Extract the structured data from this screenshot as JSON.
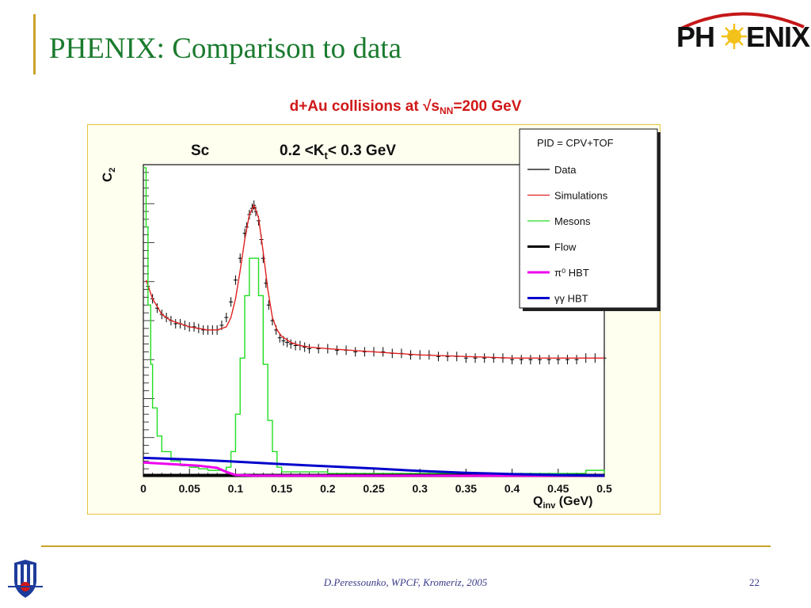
{
  "slide": {
    "title": "PHENIX: Comparison to data",
    "logo_text_left": "PH",
    "logo_text_right": "ENIX",
    "subtitle_prefix": "d+Au collisions at √s",
    "subtitle_sub": "NN",
    "subtitle_suffix": "=200 GeV",
    "footer": "D.Peressounko, WPCF, Kromeriz, 2005",
    "page_number": "22"
  },
  "colors": {
    "title": "#1a7a2e",
    "accent_rule": "#c9a227",
    "subtitle": "#d01818",
    "plot_background": "#fffff0",
    "data": "#000000",
    "simulations": "#e02020",
    "mesons": "#22dd22",
    "flow": "#000000",
    "pi0_hbt": "#ee00ee",
    "gg_hbt": "#0000cc"
  },
  "chart_data": {
    "type": "line",
    "panel_label": "Sc",
    "kt_label_prefix": "0.2 <K",
    "kt_label_sub": "t",
    "kt_label_suffix": "< 0.3 GeV",
    "ylabel": "C",
    "ylabel_sub": "2",
    "xlabel": "Q",
    "xlabel_sub": "inv",
    "xlabel_unit": " (GeV)",
    "xlim": [
      0,
      0.5
    ],
    "ylim": [
      0,
      1
    ],
    "y_tick_labels_shown": false,
    "x_ticks": [
      "0",
      "0.05",
      "0.1",
      "0.15",
      "0.2",
      "0.25",
      "0.3",
      "0.35",
      "0.4",
      "0.45",
      "0.5"
    ],
    "legend": {
      "header": "PID = CPV+TOF",
      "placement": "top-right",
      "entries": [
        {
          "label": "Data",
          "color": "#000000",
          "style": "thin"
        },
        {
          "label": "Simulations",
          "color": "#e02020",
          "style": "thin"
        },
        {
          "label": "Mesons",
          "color": "#22dd22",
          "style": "thin"
        },
        {
          "label": "Flow",
          "color": "#000000",
          "style": "thick"
        },
        {
          "label": "π⁰ HBT",
          "color": "#ee00ee",
          "style": "thick"
        },
        {
          "label": "γγ HBT",
          "color": "#0000cc",
          "style": "thick"
        }
      ]
    },
    "series": [
      {
        "name": "Data",
        "style": "errorbar-points",
        "x": [
          0.005,
          0.01,
          0.015,
          0.02,
          0.025,
          0.03,
          0.035,
          0.04,
          0.045,
          0.05,
          0.055,
          0.06,
          0.065,
          0.07,
          0.075,
          0.08,
          0.085,
          0.09,
          0.095,
          0.1,
          0.105,
          0.11,
          0.112,
          0.115,
          0.118,
          0.12,
          0.122,
          0.125,
          0.128,
          0.13,
          0.133,
          0.136,
          0.14,
          0.144,
          0.148,
          0.152,
          0.156,
          0.16,
          0.165,
          0.17,
          0.175,
          0.18,
          0.19,
          0.2,
          0.21,
          0.22,
          0.23,
          0.24,
          0.25,
          0.26,
          0.27,
          0.28,
          0.29,
          0.3,
          0.31,
          0.32,
          0.33,
          0.34,
          0.35,
          0.36,
          0.37,
          0.38,
          0.39,
          0.4,
          0.41,
          0.42,
          0.43,
          0.44,
          0.45,
          0.46,
          0.47,
          0.48,
          0.49,
          0.5
        ],
        "y": [
          0.61,
          0.57,
          0.54,
          0.52,
          0.51,
          0.5,
          0.49,
          0.49,
          0.485,
          0.48,
          0.48,
          0.475,
          0.47,
          0.47,
          0.47,
          0.47,
          0.485,
          0.51,
          0.56,
          0.63,
          0.7,
          0.78,
          0.8,
          0.84,
          0.86,
          0.87,
          0.85,
          0.82,
          0.76,
          0.7,
          0.62,
          0.55,
          0.5,
          0.47,
          0.445,
          0.435,
          0.43,
          0.425,
          0.42,
          0.42,
          0.415,
          0.41,
          0.41,
          0.41,
          0.405,
          0.405,
          0.4,
          0.4,
          0.4,
          0.4,
          0.395,
          0.395,
          0.39,
          0.39,
          0.39,
          0.385,
          0.385,
          0.385,
          0.38,
          0.38,
          0.38,
          0.38,
          0.38,
          0.375,
          0.375,
          0.375,
          0.375,
          0.375,
          0.375,
          0.375,
          0.375,
          0.38,
          0.38,
          0.38
        ]
      },
      {
        "name": "Simulations",
        "style": "line",
        "x": [
          0.003,
          0.01,
          0.02,
          0.03,
          0.04,
          0.05,
          0.06,
          0.07,
          0.08,
          0.09,
          0.095,
          0.1,
          0.105,
          0.11,
          0.115,
          0.12,
          0.125,
          0.13,
          0.135,
          0.14,
          0.145,
          0.15,
          0.16,
          0.17,
          0.18,
          0.2,
          0.25,
          0.3,
          0.35,
          0.4,
          0.45,
          0.5
        ],
        "y": [
          0.63,
          0.57,
          0.52,
          0.5,
          0.49,
          0.48,
          0.475,
          0.47,
          0.47,
          0.48,
          0.51,
          0.57,
          0.66,
          0.76,
          0.84,
          0.87,
          0.83,
          0.72,
          0.6,
          0.51,
          0.47,
          0.45,
          0.43,
          0.42,
          0.415,
          0.41,
          0.4,
          0.39,
          0.385,
          0.38,
          0.38,
          0.38
        ]
      },
      {
        "name": "Mesons",
        "style": "step",
        "x": [
          0.0,
          0.003,
          0.005,
          0.008,
          0.01,
          0.015,
          0.02,
          0.03,
          0.04,
          0.05,
          0.06,
          0.07,
          0.08,
          0.09,
          0.095,
          0.1,
          0.105,
          0.11,
          0.115,
          0.12,
          0.125,
          0.13,
          0.135,
          0.14,
          0.145,
          0.15,
          0.2,
          0.3,
          0.4,
          0.45,
          0.48,
          0.5
        ],
        "y": [
          0.99,
          0.8,
          0.55,
          0.36,
          0.22,
          0.13,
          0.08,
          0.05,
          0.035,
          0.03,
          0.025,
          0.02,
          0.02,
          0.03,
          0.08,
          0.2,
          0.38,
          0.58,
          0.7,
          0.7,
          0.58,
          0.36,
          0.18,
          0.08,
          0.03,
          0.015,
          0.01,
          0.01,
          0.01,
          0.01,
          0.02,
          0.01
        ]
      },
      {
        "name": "Flow",
        "style": "thick-line",
        "x": [
          0.0,
          0.05,
          0.1,
          0.15,
          0.2,
          0.25,
          0.3,
          0.35,
          0.4,
          0.45,
          0.5
        ],
        "y": [
          0.005,
          0.005,
          0.005,
          0.005,
          0.005,
          0.005,
          0.005,
          0.005,
          0.005,
          0.005,
          0.005
        ]
      },
      {
        "name": "π⁰ HBT",
        "style": "thick-line",
        "x": [
          0.0,
          0.03,
          0.06,
          0.08,
          0.09,
          0.1,
          0.12,
          0.15,
          0.2,
          0.3,
          0.4,
          0.5
        ],
        "y": [
          0.045,
          0.04,
          0.035,
          0.028,
          0.015,
          0.005,
          0.003,
          0.003,
          0.003,
          0.003,
          0.003,
          0.003
        ]
      },
      {
        "name": "γγ HBT",
        "style": "thick-line",
        "x": [
          0.0,
          0.05,
          0.1,
          0.15,
          0.2,
          0.25,
          0.3,
          0.35,
          0.4,
          0.45,
          0.5
        ],
        "y": [
          0.06,
          0.055,
          0.048,
          0.04,
          0.033,
          0.026,
          0.018,
          0.012,
          0.008,
          0.005,
          0.003
        ]
      }
    ]
  }
}
